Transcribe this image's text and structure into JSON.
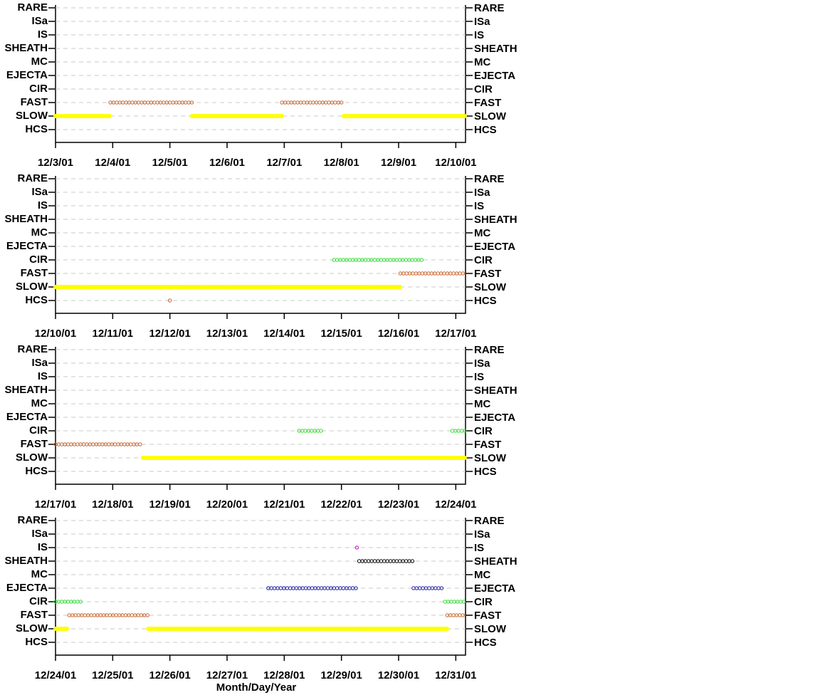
{
  "chart_data": [
    {
      "type": "timeline",
      "categories": [
        "RARE",
        "ISa",
        "IS",
        "SHEATH",
        "MC",
        "EJECTA",
        "CIR",
        "FAST",
        "SLOW",
        "HCS"
      ],
      "xlim": [
        3,
        10.17
      ],
      "xticks": [
        {
          "value": 3,
          "label": "12/3/01"
        },
        {
          "value": 4,
          "label": "12/4/01"
        },
        {
          "value": 5,
          "label": "12/5/01"
        },
        {
          "value": 6,
          "label": "12/6/01"
        },
        {
          "value": 7,
          "label": "12/7/01"
        },
        {
          "value": 8,
          "label": "12/8/01"
        },
        {
          "value": 9,
          "label": "12/9/01"
        },
        {
          "value": 10,
          "label": "12/10/01"
        }
      ],
      "colors": {
        "SLOW": "#ffff00",
        "FAST": "#c8642d"
      },
      "intervals": {
        "SLOW": [
          [
            3,
            3.95
          ],
          [
            5.39,
            6.96
          ],
          [
            8.04,
            10.17
          ]
        ],
        "FAST": [
          [
            3.96,
            5.4
          ],
          [
            6.96,
            8.04
          ]
        ]
      }
    },
    {
      "type": "timeline",
      "categories": [
        "RARE",
        "ISa",
        "IS",
        "SHEATH",
        "MC",
        "EJECTA",
        "CIR",
        "FAST",
        "SLOW",
        "HCS"
      ],
      "xlim": [
        10,
        17.17
      ],
      "xticks": [
        {
          "value": 10,
          "label": "12/10/01"
        },
        {
          "value": 11,
          "label": "12/11/01"
        },
        {
          "value": 12,
          "label": "12/12/01"
        },
        {
          "value": 13,
          "label": "12/13/01"
        },
        {
          "value": 14,
          "label": "12/14/01"
        },
        {
          "value": 15,
          "label": "12/15/01"
        },
        {
          "value": 16,
          "label": "12/16/01"
        },
        {
          "value": 17,
          "label": "12/17/01"
        }
      ],
      "colors": {
        "SLOW": "#ffff00",
        "FAST": "#c8642d",
        "CIR": "#33dd33",
        "HCS": "#c8642d"
      },
      "intervals": {
        "SLOW": [
          [
            10,
            16.03
          ]
        ],
        "FAST": [
          [
            16.03,
            17.17
          ]
        ],
        "CIR": [
          [
            14.87,
            16.43
          ]
        ],
        "HCS": [
          [
            12.0,
            12.0
          ]
        ]
      }
    },
    {
      "type": "timeline",
      "categories": [
        "RARE",
        "ISa",
        "IS",
        "SHEATH",
        "MC",
        "EJECTA",
        "CIR",
        "FAST",
        "SLOW",
        "HCS"
      ],
      "xlim": [
        17,
        24.17
      ],
      "xticks": [
        {
          "value": 17,
          "label": "12/17/01"
        },
        {
          "value": 18,
          "label": "12/18/01"
        },
        {
          "value": 19,
          "label": "12/19/01"
        },
        {
          "value": 20,
          "label": "12/20/01"
        },
        {
          "value": 21,
          "label": "12/21/01"
        },
        {
          "value": 22,
          "label": "12/22/01"
        },
        {
          "value": 23,
          "label": "12/23/01"
        },
        {
          "value": 24,
          "label": "12/24/01"
        }
      ],
      "colors": {
        "SLOW": "#ffff00",
        "FAST": "#c8642d",
        "CIR": "#33dd33"
      },
      "intervals": {
        "FAST": [
          [
            17,
            18.53
          ]
        ],
        "SLOW": [
          [
            18.53,
            24.17
          ]
        ],
        "CIR": [
          [
            21.26,
            21.67
          ],
          [
            23.94,
            24.17
          ]
        ]
      }
    },
    {
      "type": "timeline",
      "categories": [
        "RARE",
        "ISa",
        "IS",
        "SHEATH",
        "MC",
        "EJECTA",
        "CIR",
        "FAST",
        "SLOW",
        "HCS"
      ],
      "xlim": [
        24,
        31.17
      ],
      "xticks": [
        {
          "value": 24,
          "label": "12/24/01"
        },
        {
          "value": 25,
          "label": "12/25/01"
        },
        {
          "value": 26,
          "label": "12/26/01"
        },
        {
          "value": 27,
          "label": "12/27/01"
        },
        {
          "value": 28,
          "label": "12/28/01"
        },
        {
          "value": 29,
          "label": "12/29/01"
        },
        {
          "value": 30,
          "label": "12/30/01"
        },
        {
          "value": 31,
          "label": "12/31/01"
        }
      ],
      "xlabel": "Month/Day/Year",
      "colors": {
        "SLOW": "#ffff00",
        "FAST": "#c8642d",
        "CIR": "#33dd33",
        "EJECTA": "#1a1aa8",
        "SHEATH": "#000000",
        "IS": "#cc00cc"
      },
      "intervals": {
        "SLOW": [
          [
            24,
            24.21
          ],
          [
            25.62,
            30.85
          ]
        ],
        "FAST": [
          [
            24.24,
            25.61
          ],
          [
            30.85,
            31.17
          ]
        ],
        "CIR": [
          [
            24,
            24.44
          ],
          [
            30.81,
            31.17
          ]
        ],
        "EJECTA": [
          [
            27.72,
            29.26
          ],
          [
            30.26,
            30.8
          ]
        ],
        "SHEATH": [
          [
            29.31,
            30.26
          ]
        ],
        "IS": [
          [
            29.27,
            29.27
          ]
        ]
      }
    }
  ]
}
